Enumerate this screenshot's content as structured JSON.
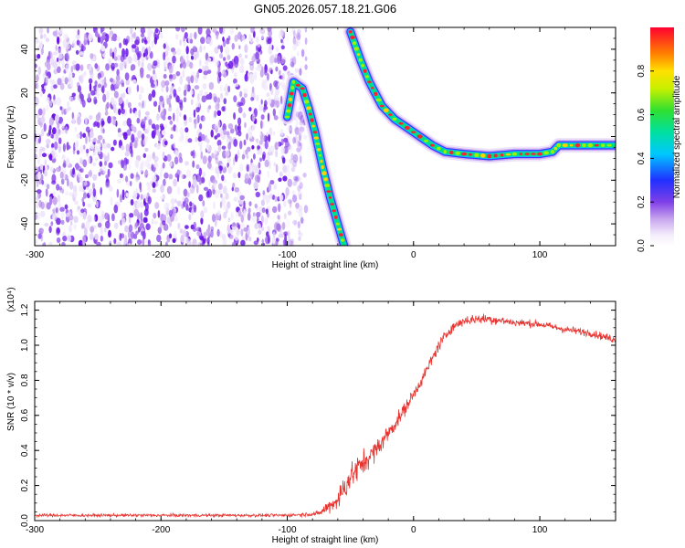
{
  "title": "GN05.2026.057.18.21.G06",
  "colors": {
    "snr_line": "#e8332f",
    "axis": "#000000",
    "scatter_noise": "#7b2cf0"
  },
  "chart_data": [
    {
      "type": "heatmap",
      "xlabel": "Height of straight line (km)",
      "ylabel": "Frequency (Hz)",
      "xlim": [
        -300,
        160
      ],
      "ylim": [
        -50,
        50
      ],
      "xticks": [
        -300,
        -200,
        -100,
        0,
        100
      ],
      "yticks": [
        -40,
        -20,
        0,
        20,
        40
      ],
      "colorbar": {
        "label": "Normalized spectral amplitude",
        "range": [
          0,
          1
        ],
        "ticks": [
          "0.0",
          "0.2",
          "0.4",
          "0.6",
          "0.8"
        ],
        "colormap": "rainbow (white-violet-blue-cyan-green-yellow-red)"
      },
      "noise_region_x": [
        -300,
        -85
      ],
      "signal_tracks": [
        {
          "points": [
            [
              -100,
              9
            ],
            [
              -95,
              25
            ],
            [
              -88,
              22
            ],
            [
              -83,
              13
            ],
            [
              -78,
              2
            ],
            [
              -72,
              -14
            ],
            [
              -66,
              -28
            ],
            [
              -60,
              -40
            ],
            [
              -55,
              -50
            ]
          ]
        },
        {
          "points": [
            [
              -50,
              48
            ],
            [
              -42,
              35
            ],
            [
              -35,
              25
            ],
            [
              -25,
              14
            ],
            [
              -15,
              8
            ],
            [
              -5,
              4
            ],
            [
              5,
              0
            ],
            [
              15,
              -4
            ],
            [
              25,
              -7
            ],
            [
              40,
              -8
            ],
            [
              60,
              -9
            ],
            [
              80,
              -8
            ],
            [
              100,
              -8
            ],
            [
              110,
              -7
            ],
            [
              115,
              -4
            ],
            [
              130,
              -4
            ],
            [
              160,
              -4
            ]
          ]
        }
      ]
    },
    {
      "type": "line",
      "xlabel": "Height of straight line (km)",
      "ylabel": "SNR (10 * v/v)",
      "y_multiplier": "(x10⁴)",
      "xlim": [
        -300,
        160
      ],
      "ylim": [
        0,
        1.25
      ],
      "xticks": [
        -300,
        -200,
        -100,
        0,
        100
      ],
      "yticks": [
        "0.0",
        "0.2",
        "0.4",
        "0.6",
        "0.8",
        "1.0",
        "1.2"
      ],
      "series": [
        {
          "x": [
            -300,
            -200,
            -100,
            -75,
            -60,
            -50,
            -40,
            -30,
            -20,
            -10,
            0,
            10,
            20,
            30,
            40,
            50,
            60,
            80,
            100,
            120,
            140,
            160
          ],
          "y": [
            0.03,
            0.03,
            0.03,
            0.04,
            0.12,
            0.25,
            0.33,
            0.4,
            0.5,
            0.6,
            0.72,
            0.85,
            1.0,
            1.1,
            1.14,
            1.15,
            1.15,
            1.13,
            1.12,
            1.09,
            1.07,
            1.03
          ],
          "noise": [
            0.012,
            0.012,
            0.012,
            0.02,
            0.09,
            0.12,
            0.1,
            0.08,
            0.07,
            0.06,
            0.05,
            0.05,
            0.05,
            0.04,
            0.04,
            0.04,
            0.04,
            0.03,
            0.03,
            0.03,
            0.03,
            0.03
          ]
        }
      ]
    }
  ]
}
